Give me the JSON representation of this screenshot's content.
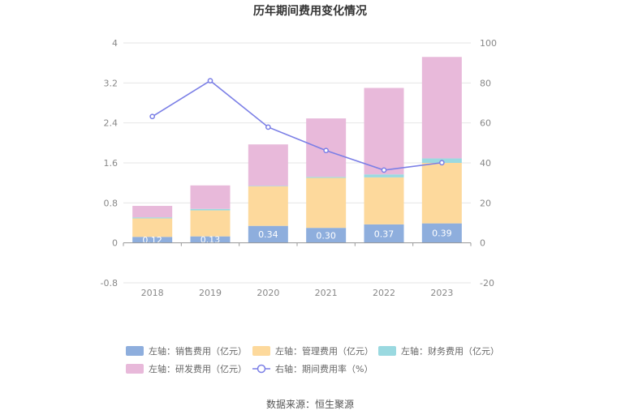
{
  "chart_data": {
    "type": "bar",
    "title": "历年期间费用变化情况",
    "categories": [
      "2018",
      "2019",
      "2020",
      "2021",
      "2022",
      "2023"
    ],
    "left_axis": {
      "ylim": [
        -0.8,
        4
      ],
      "ticks": [
        "4",
        "3.2",
        "2.4",
        "1.6",
        "0.8",
        "0",
        "-0.8"
      ],
      "tick_values": [
        4,
        3.2,
        2.4,
        1.6,
        0.8,
        0,
        -0.8
      ]
    },
    "right_axis": {
      "ylim": [
        -20,
        100
      ],
      "ticks": [
        "100",
        "80",
        "60",
        "40",
        "20",
        "0",
        "-20"
      ],
      "tick_values": [
        100,
        80,
        60,
        40,
        20,
        0,
        -20
      ]
    },
    "series": [
      {
        "name": "左轴：销售费用（亿元）",
        "kind": "bar",
        "color": "#8eaedd",
        "values": [
          0.12,
          0.13,
          0.34,
          0.3,
          0.37,
          0.39
        ],
        "labels": [
          "0.12",
          "0.13",
          "0.34",
          "0.30",
          "0.37",
          "0.39"
        ]
      },
      {
        "name": "左轴：管理费用（亿元）",
        "kind": "bar",
        "color": "#fdd99c",
        "values": [
          0.37,
          0.52,
          0.79,
          1.0,
          0.94,
          1.21
        ]
      },
      {
        "name": "左轴：财务费用（亿元）",
        "kind": "bar",
        "color": "#9ad9e0",
        "values": [
          0.02,
          0.03,
          0.01,
          0.02,
          0.06,
          0.09
        ]
      },
      {
        "name": "左轴：研发费用（亿元）",
        "kind": "bar",
        "color": "#e8b9da",
        "values": [
          0.23,
          0.47,
          0.83,
          1.17,
          1.73,
          2.03
        ]
      },
      {
        "name": "右轴：期间费用率（%）",
        "kind": "line",
        "color": "#7b7fe6",
        "values": [
          63.2,
          81.1,
          57.9,
          46.2,
          36.4,
          40.1
        ]
      }
    ]
  },
  "legend": [
    {
      "label": "左轴：销售费用（亿元）",
      "color": "#8eaedd",
      "kind": "bar"
    },
    {
      "label": "左轴：管理费用（亿元）",
      "color": "#fdd99c",
      "kind": "bar"
    },
    {
      "label": "左轴：财务费用（亿元）",
      "color": "#9ad9e0",
      "kind": "bar"
    },
    {
      "label": "左轴：研发费用（亿元）",
      "color": "#e8b9da",
      "kind": "bar"
    },
    {
      "label": "右轴：期间费用率（%）",
      "color": "#7b7fe6",
      "kind": "line"
    }
  ],
  "source": "数据来源：恒生聚源"
}
